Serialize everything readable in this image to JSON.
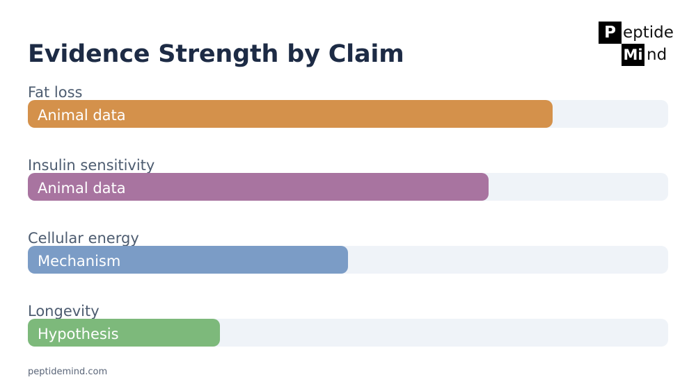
{
  "chart_data": {
    "type": "bar",
    "orientation": "horizontal",
    "title": "Evidence Strength by Claim",
    "categories": [
      "Fat loss",
      "Insulin sensitivity",
      "Cellular energy",
      "Longevity"
    ],
    "values": [
      82,
      72,
      50,
      30
    ],
    "bar_labels": [
      "Animal data",
      "Animal data",
      "Mechanism",
      "Hypothesis"
    ],
    "colors": [
      "#d4914b",
      "#a874a0",
      "#7b9cc6",
      "#7db97b"
    ],
    "track_color": "#eff3f8",
    "xlim": [
      0,
      100
    ],
    "grid": false,
    "legend": "none"
  },
  "logo": {
    "box1": "P",
    "text1": "eptide",
    "box2": "Mi",
    "text2": "nd"
  },
  "footer": "peptidemind.com"
}
